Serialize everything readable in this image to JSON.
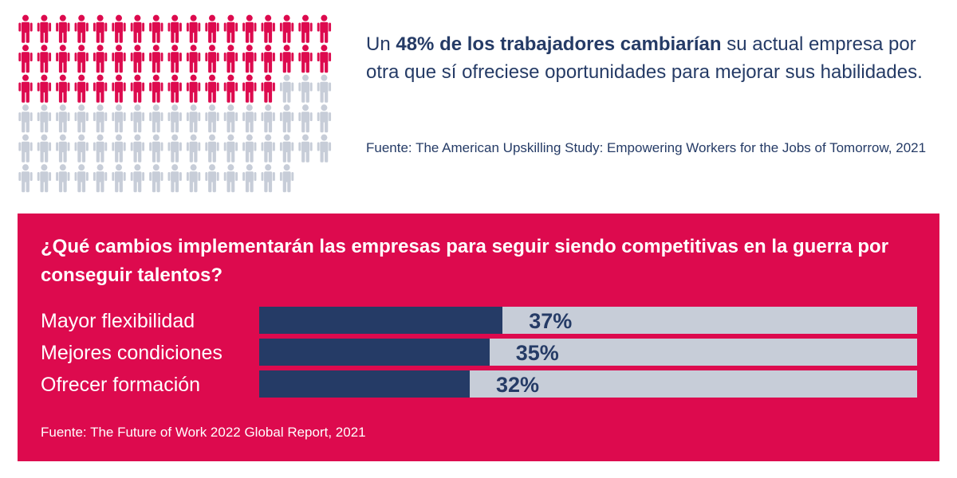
{
  "pictogram": {
    "total_people": 100,
    "highlighted_people": 48,
    "highlight_color": "#DD0A4E",
    "base_color": "#C7CDD8",
    "icon": "person-icon"
  },
  "headline": {
    "prefix": "Un ",
    "emphasis": "48% de los trabajadores cambiarían",
    "suffix": " su actual empresa por otra que sí ofreciese oportunidades para mejorar sus habilidades."
  },
  "source_top": "Fuente: The American Upskilling Study: Empowering Workers for the Jobs of Tomorrow, 2021",
  "panel": {
    "background_color": "#DD0A4E",
    "title": "¿Qué cambios implementarán las empresas para seguir siendo competitivas en la guerra por conseguir talentos?",
    "source": "Fuente: The Future of Work 2022 Global Report, 2021"
  },
  "chart_data": {
    "type": "bar",
    "orientation": "horizontal",
    "categories": [
      "Mayor flexibilidad",
      "Mejores condiciones",
      "Ofrecer formación"
    ],
    "values": [
      37,
      35,
      32
    ],
    "value_labels": [
      "37%",
      "35%",
      "32%"
    ],
    "xlim": [
      0,
      100
    ],
    "unit": "%",
    "fill_color": "#253B66",
    "track_color": "#C7CDD8"
  }
}
